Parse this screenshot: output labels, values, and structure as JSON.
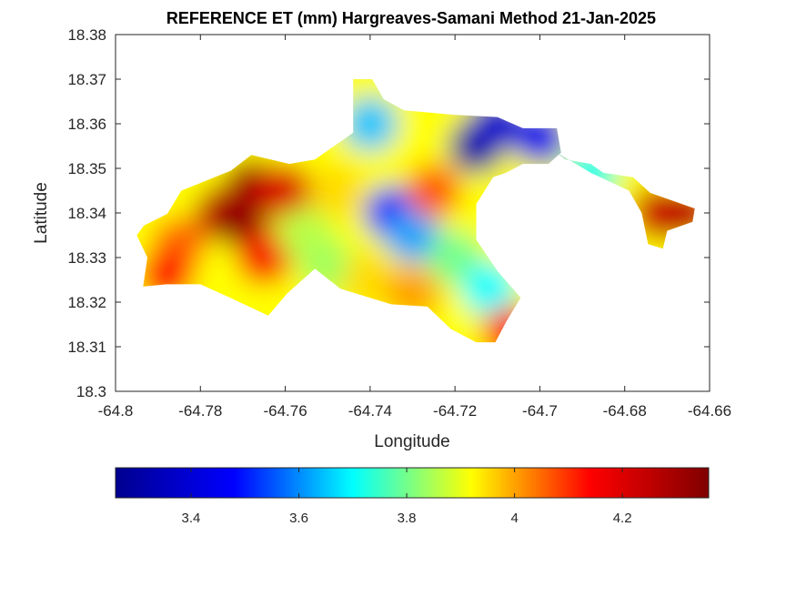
{
  "chart_data": {
    "type": "heatmap",
    "title": "REFERENCE ET (mm) Hargreaves-Samani Method  21-Jan-2025",
    "xlabel": "Longitude",
    "ylabel": "Latitude",
    "xlim": [
      -64.8,
      -64.66
    ],
    "ylim": [
      18.3,
      18.38
    ],
    "xticks": [
      -64.8,
      -64.78,
      -64.76,
      -64.74,
      -64.72,
      -64.7,
      -64.68,
      -64.66
    ],
    "xtick_labels": [
      "-64.8",
      "-64.78",
      "-64.76",
      "-64.74",
      "-64.72",
      "-64.7",
      "-64.68",
      "-64.66"
    ],
    "yticks": [
      18.3,
      18.31,
      18.32,
      18.33,
      18.34,
      18.35,
      18.36,
      18.37,
      18.38
    ],
    "ytick_labels": [
      "18.3",
      "18.31",
      "18.32",
      "18.33",
      "18.34",
      "18.35",
      "18.36",
      "18.37",
      "18.38"
    ],
    "grid": false,
    "colormap": "jet",
    "colorbar": {
      "orientation": "horizontal",
      "placement": "below",
      "clim": [
        3.26,
        4.36
      ],
      "ticks": [
        3.4,
        3.6,
        3.8,
        4.0,
        4.2
      ],
      "tick_labels": [
        "3.4",
        "3.6",
        "3.8",
        "4",
        "4.2"
      ]
    },
    "colors": {
      "jet": [
        "#00008f",
        "#0000ff",
        "#00ffff",
        "#ffff00",
        "#ff0000",
        "#800000"
      ]
    },
    "region_outline": [
      [
        -64.7933,
        18.3372
      ],
      [
        -64.7878,
        18.3398
      ],
      [
        -64.7845,
        18.345
      ],
      [
        -64.7728,
        18.3495
      ],
      [
        -64.768,
        18.353
      ],
      [
        -64.759,
        18.351
      ],
      [
        -64.753,
        18.352
      ],
      [
        -64.744,
        18.358
      ],
      [
        -64.744,
        18.37
      ],
      [
        -64.7395,
        18.37
      ],
      [
        -64.7368,
        18.3655
      ],
      [
        -64.732,
        18.363
      ],
      [
        -64.72,
        18.362
      ],
      [
        -64.71,
        18.3615
      ],
      [
        -64.704,
        18.359
      ],
      [
        -64.696,
        18.359
      ],
      [
        -64.695,
        18.3535
      ],
      [
        -64.698,
        18.351
      ],
      [
        -64.704,
        18.351
      ],
      [
        -64.708,
        18.349
      ],
      [
        -64.711,
        18.348
      ],
      [
        -64.715,
        18.342
      ],
      [
        -64.715,
        18.334
      ],
      [
        -64.71,
        18.327
      ],
      [
        -64.7045,
        18.321
      ],
      [
        -64.708,
        18.3155
      ],
      [
        -64.7105,
        18.311
      ],
      [
        -64.715,
        18.311
      ],
      [
        -64.721,
        18.314
      ],
      [
        -64.7265,
        18.319
      ],
      [
        -64.735,
        18.3195
      ],
      [
        -64.747,
        18.323
      ],
      [
        -64.753,
        18.3275
      ],
      [
        -64.7595,
        18.322
      ],
      [
        -64.764,
        18.317
      ],
      [
        -64.773,
        18.321
      ],
      [
        -64.78,
        18.324
      ],
      [
        -64.788,
        18.324
      ],
      [
        -64.7935,
        18.3235
      ],
      [
        -64.7925,
        18.33
      ],
      [
        -64.795,
        18.335
      ],
      [
        -64.7933,
        18.3372
      ]
    ],
    "region_outline_east": [
      [
        -64.696,
        18.3535
      ],
      [
        -64.694,
        18.352
      ],
      [
        -64.688,
        18.351
      ],
      [
        -64.685,
        18.349
      ],
      [
        -64.678,
        18.348
      ],
      [
        -64.674,
        18.3445
      ],
      [
        -64.668,
        18.3425
      ],
      [
        -64.6635,
        18.341
      ],
      [
        -64.664,
        18.338
      ],
      [
        -64.67,
        18.336
      ],
      [
        -64.671,
        18.332
      ],
      [
        -64.6745,
        18.333
      ],
      [
        -64.676,
        18.34
      ],
      [
        -64.679,
        18.345
      ],
      [
        -64.688,
        18.349
      ],
      [
        -64.696,
        18.3535
      ]
    ],
    "et_points": [
      {
        "lon": -64.785,
        "lat": 18.333,
        "value": 4.05
      },
      {
        "lon": -64.775,
        "lat": 18.34,
        "value": 4.24
      },
      {
        "lon": -64.77,
        "lat": 18.338,
        "value": 4.35
      },
      {
        "lon": -64.768,
        "lat": 18.346,
        "value": 4.3
      },
      {
        "lon": -64.76,
        "lat": 18.345,
        "value": 4.2
      },
      {
        "lon": -64.788,
        "lat": 18.326,
        "value": 4.12
      },
      {
        "lon": -64.765,
        "lat": 18.33,
        "value": 4.15
      },
      {
        "lon": -64.755,
        "lat": 18.335,
        "value": 3.86
      },
      {
        "lon": -64.75,
        "lat": 18.328,
        "value": 3.84
      },
      {
        "lon": -64.748,
        "lat": 18.345,
        "value": 3.95
      },
      {
        "lon": -64.74,
        "lat": 18.36,
        "value": 3.65
      },
      {
        "lon": -64.735,
        "lat": 18.34,
        "value": 3.48
      },
      {
        "lon": -64.73,
        "lat": 18.335,
        "value": 3.62
      },
      {
        "lon": -64.725,
        "lat": 18.345,
        "value": 4.06
      },
      {
        "lon": -64.72,
        "lat": 18.33,
        "value": 3.8
      },
      {
        "lon": -64.715,
        "lat": 18.355,
        "value": 3.3
      },
      {
        "lon": -64.71,
        "lat": 18.36,
        "value": 3.38
      },
      {
        "lon": -64.712,
        "lat": 18.323,
        "value": 3.7
      },
      {
        "lon": -64.707,
        "lat": 18.313,
        "value": 4.12
      },
      {
        "lon": -64.74,
        "lat": 18.325,
        "value": 3.95
      },
      {
        "lon": -64.73,
        "lat": 18.322,
        "value": 4.0
      },
      {
        "lon": -64.7,
        "lat": 18.357,
        "value": 3.44
      },
      {
        "lon": -64.688,
        "lat": 18.349,
        "value": 3.72
      },
      {
        "lon": -64.672,
        "lat": 18.34,
        "value": 4.22
      },
      {
        "lon": -64.666,
        "lat": 18.34,
        "value": 4.25
      }
    ]
  }
}
